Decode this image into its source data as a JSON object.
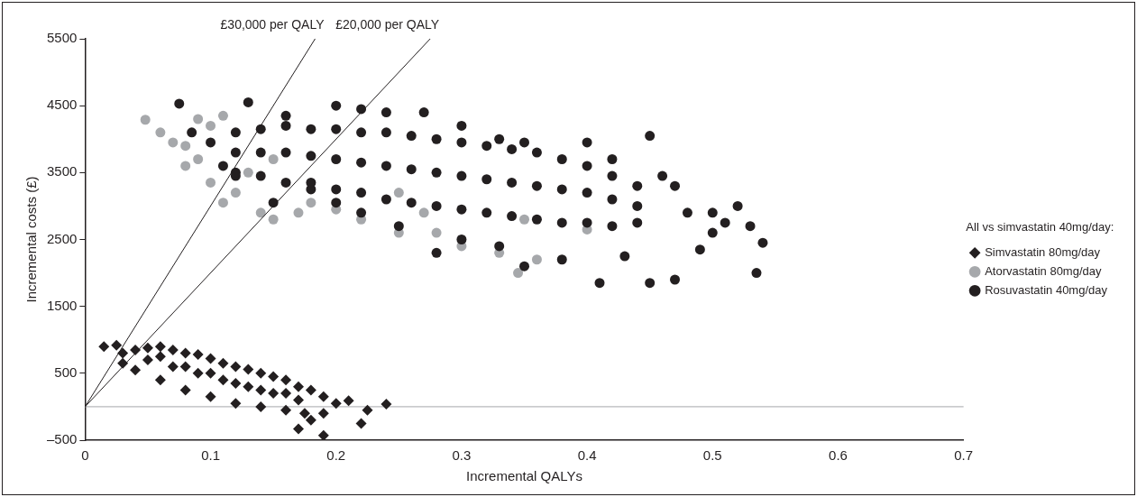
{
  "chart_data": {
    "type": "scatter",
    "xlabel": "Incremental QALYs",
    "ylabel": "Incremental costs (£)",
    "legend_title": "All vs simvastatin 40mg/day:",
    "legend": "right",
    "grid": false,
    "xlim": [
      0,
      0.7
    ],
    "xticks": [
      0,
      0.1,
      0.2,
      0.3,
      0.4,
      0.5,
      0.6,
      0.7
    ],
    "ylim": [
      -500,
      5500
    ],
    "yticks": [
      {
        "value": -500,
        "label": "–500"
      },
      500,
      1500,
      2500,
      3500,
      4500,
      5500
    ],
    "ref_lines": [
      {
        "axis": "y",
        "value": 0,
        "color": "#a6a8ab"
      }
    ],
    "annotations": [
      {
        "text": "£30,000 per QALY",
        "x": 0.1833,
        "y": 5500
      },
      {
        "text": "£20,000 per QALY",
        "x": 0.275,
        "y": 5500
      }
    ],
    "series": [
      {
        "name": "Simvastatin 80mg/day",
        "color": "#231f20",
        "marker": "diamond",
        "x": [
          0.015,
          0.025,
          0.03,
          0.04,
          0.05,
          0.06,
          0.07,
          0.08,
          0.09,
          0.1,
          0.11,
          0.12,
          0.13,
          0.14,
          0.15,
          0.16,
          0.17,
          0.18,
          0.19,
          0.2,
          0.19,
          0.175,
          0.17,
          0.19,
          0.18,
          0.16,
          0.14,
          0.12,
          0.1,
          0.08,
          0.06,
          0.04,
          0.03,
          0.21,
          0.24,
          0.22,
          0.225,
          0.05,
          0.07,
          0.09,
          0.11,
          0.13,
          0.15,
          0.17,
          0.1,
          0.12,
          0.14,
          0.16,
          0.08,
          0.06
        ],
        "values": [
          900,
          920,
          800,
          850,
          880,
          900,
          850,
          800,
          780,
          720,
          650,
          600,
          560,
          500,
          450,
          400,
          300,
          250,
          150,
          50,
          -100,
          -100,
          -330,
          -430,
          -200,
          -50,
          0,
          50,
          150,
          250,
          400,
          550,
          650,
          90,
          40,
          -250,
          -50,
          700,
          600,
          500,
          400,
          300,
          200,
          100,
          500,
          350,
          250,
          200,
          600,
          750
        ]
      },
      {
        "name": "Atorvastatin 80mg/day",
        "color": "#a6a8ab",
        "marker": "circle",
        "x": [
          0.048,
          0.06,
          0.07,
          0.08,
          0.09,
          0.1,
          0.11,
          0.08,
          0.09,
          0.1,
          0.12,
          0.11,
          0.14,
          0.15,
          0.17,
          0.2,
          0.22,
          0.25,
          0.28,
          0.3,
          0.33,
          0.36,
          0.345,
          0.13,
          0.15,
          0.25,
          0.35,
          0.4,
          0.18,
          0.27
        ],
        "values": [
          4290,
          4100,
          3950,
          3900,
          4300,
          4200,
          4350,
          3600,
          3700,
          3350,
          3200,
          3050,
          2900,
          2800,
          2900,
          2950,
          2800,
          2600,
          2600,
          2400,
          2300,
          2200,
          2000,
          3500,
          3700,
          3200,
          2800,
          2650,
          3050,
          2900
        ]
      },
      {
        "name": "Rosuvastatin 40mg/day",
        "color": "#231f20",
        "marker": "circle",
        "x": [
          0.075,
          0.085,
          0.1,
          0.11,
          0.12,
          0.13,
          0.15,
          0.16,
          0.2,
          0.22,
          0.24,
          0.27,
          0.3,
          0.33,
          0.35,
          0.4,
          0.42,
          0.45,
          0.46,
          0.47,
          0.48,
          0.5,
          0.51,
          0.52,
          0.53,
          0.54,
          0.535,
          0.5,
          0.49,
          0.47,
          0.45,
          0.41,
          0.43,
          0.38,
          0.35,
          0.33,
          0.3,
          0.28,
          0.25,
          0.22,
          0.2,
          0.18,
          0.12,
          0.12,
          0.12,
          0.14,
          0.14,
          0.14,
          0.16,
          0.16,
          0.16,
          0.18,
          0.18,
          0.18,
          0.2,
          0.2,
          0.2,
          0.22,
          0.22,
          0.22,
          0.24,
          0.24,
          0.24,
          0.26,
          0.26,
          0.26,
          0.28,
          0.28,
          0.28,
          0.3,
          0.3,
          0.3,
          0.32,
          0.32,
          0.32,
          0.34,
          0.34,
          0.34,
          0.36,
          0.36,
          0.36,
          0.38,
          0.38,
          0.38,
          0.4,
          0.4,
          0.4,
          0.42,
          0.42,
          0.42,
          0.44,
          0.44,
          0.44
        ],
        "values": [
          4530,
          4100,
          3950,
          3600,
          3450,
          4550,
          3050,
          4350,
          4500,
          4450,
          4400,
          4400,
          4200,
          4000,
          3950,
          3950,
          3700,
          4050,
          3450,
          3300,
          2900,
          2900,
          2750,
          3000,
          2700,
          2450,
          2000,
          2600,
          2350,
          1900,
          1850,
          1850,
          2250,
          2200,
          2100,
          2400,
          2500,
          2300,
          2700,
          2900,
          3050,
          3250,
          4100,
          3800,
          3500,
          4150,
          3800,
          3450,
          4200,
          3800,
          3350,
          4150,
          3750,
          3350,
          4150,
          3700,
          3250,
          4100,
          3650,
          3200,
          4100,
          3600,
          3100,
          4050,
          3550,
          3050,
          4000,
          3500,
          3000,
          3950,
          3450,
          2950,
          3900,
          3400,
          2900,
          3850,
          3350,
          2850,
          3800,
          3300,
          2800,
          3700,
          3250,
          2750,
          3600,
          3200,
          2750,
          3450,
          3100,
          2700,
          3300,
          3000,
          2750
        ]
      },
      {
        "type": "line",
        "color": "#231f20",
        "marker": "none",
        "line_style": "solid",
        "x": [
          0,
          0.1833
        ],
        "values": [
          0,
          5500
        ]
      },
      {
        "type": "line",
        "color": "#231f20",
        "marker": "none",
        "line_style": "solid",
        "x": [
          0,
          0.275
        ],
        "values": [
          0,
          5500
        ]
      }
    ]
  }
}
